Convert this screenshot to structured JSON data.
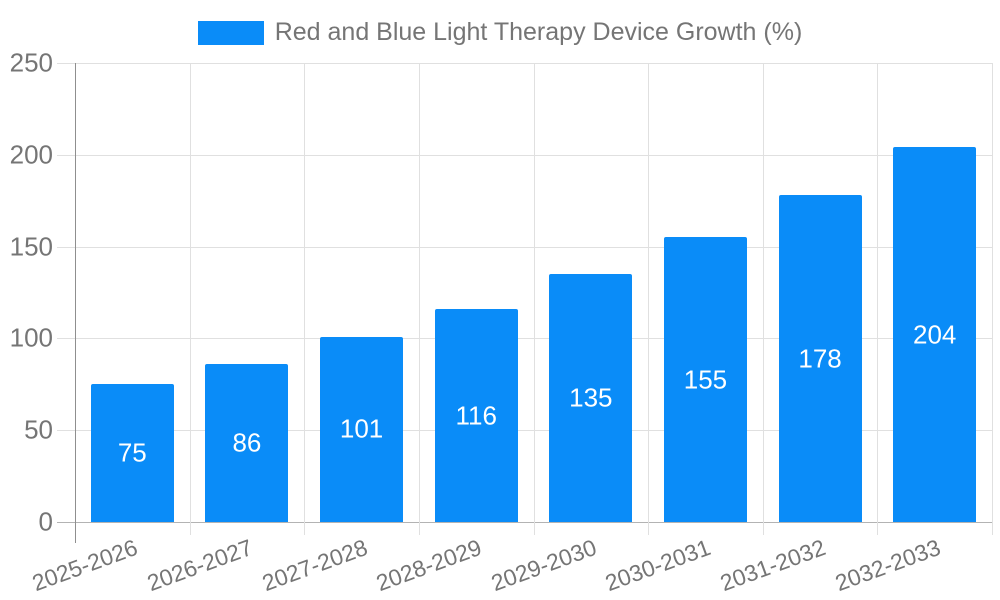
{
  "legend": {
    "position": "top",
    "swatch_color": "#0a8cf8"
  },
  "chart_data": {
    "type": "bar",
    "title": "Red and Blue Light Therapy Device Growth (%)",
    "series_name": "Red and Blue Light Therapy Device Growth (%)",
    "categories": [
      "2025-2026",
      "2026-2027",
      "2027-2028",
      "2028-2029",
      "2029-2030",
      "2030-2031",
      "2031-2032",
      "2032-2033"
    ],
    "values": [
      75,
      86,
      101,
      116,
      135,
      155,
      178,
      204
    ],
    "data_labels": [
      "75",
      "86",
      "101",
      "116",
      "135",
      "155",
      "178",
      "204"
    ],
    "xlabel": "",
    "ylabel": "",
    "ylim": [
      0,
      250
    ],
    "yticks": [
      0,
      50,
      100,
      150,
      200,
      250
    ],
    "grid": true,
    "legend_position": "top",
    "bar_color": "#0a8cf8",
    "bar_label_color": "#ffffff",
    "axis_text_color": "#757575",
    "grid_color": "#e0e0e0",
    "axis_line_color": "#8f8f8f",
    "baseline_color": "#b3b3b3",
    "x_label_rotation_deg": -20
  }
}
